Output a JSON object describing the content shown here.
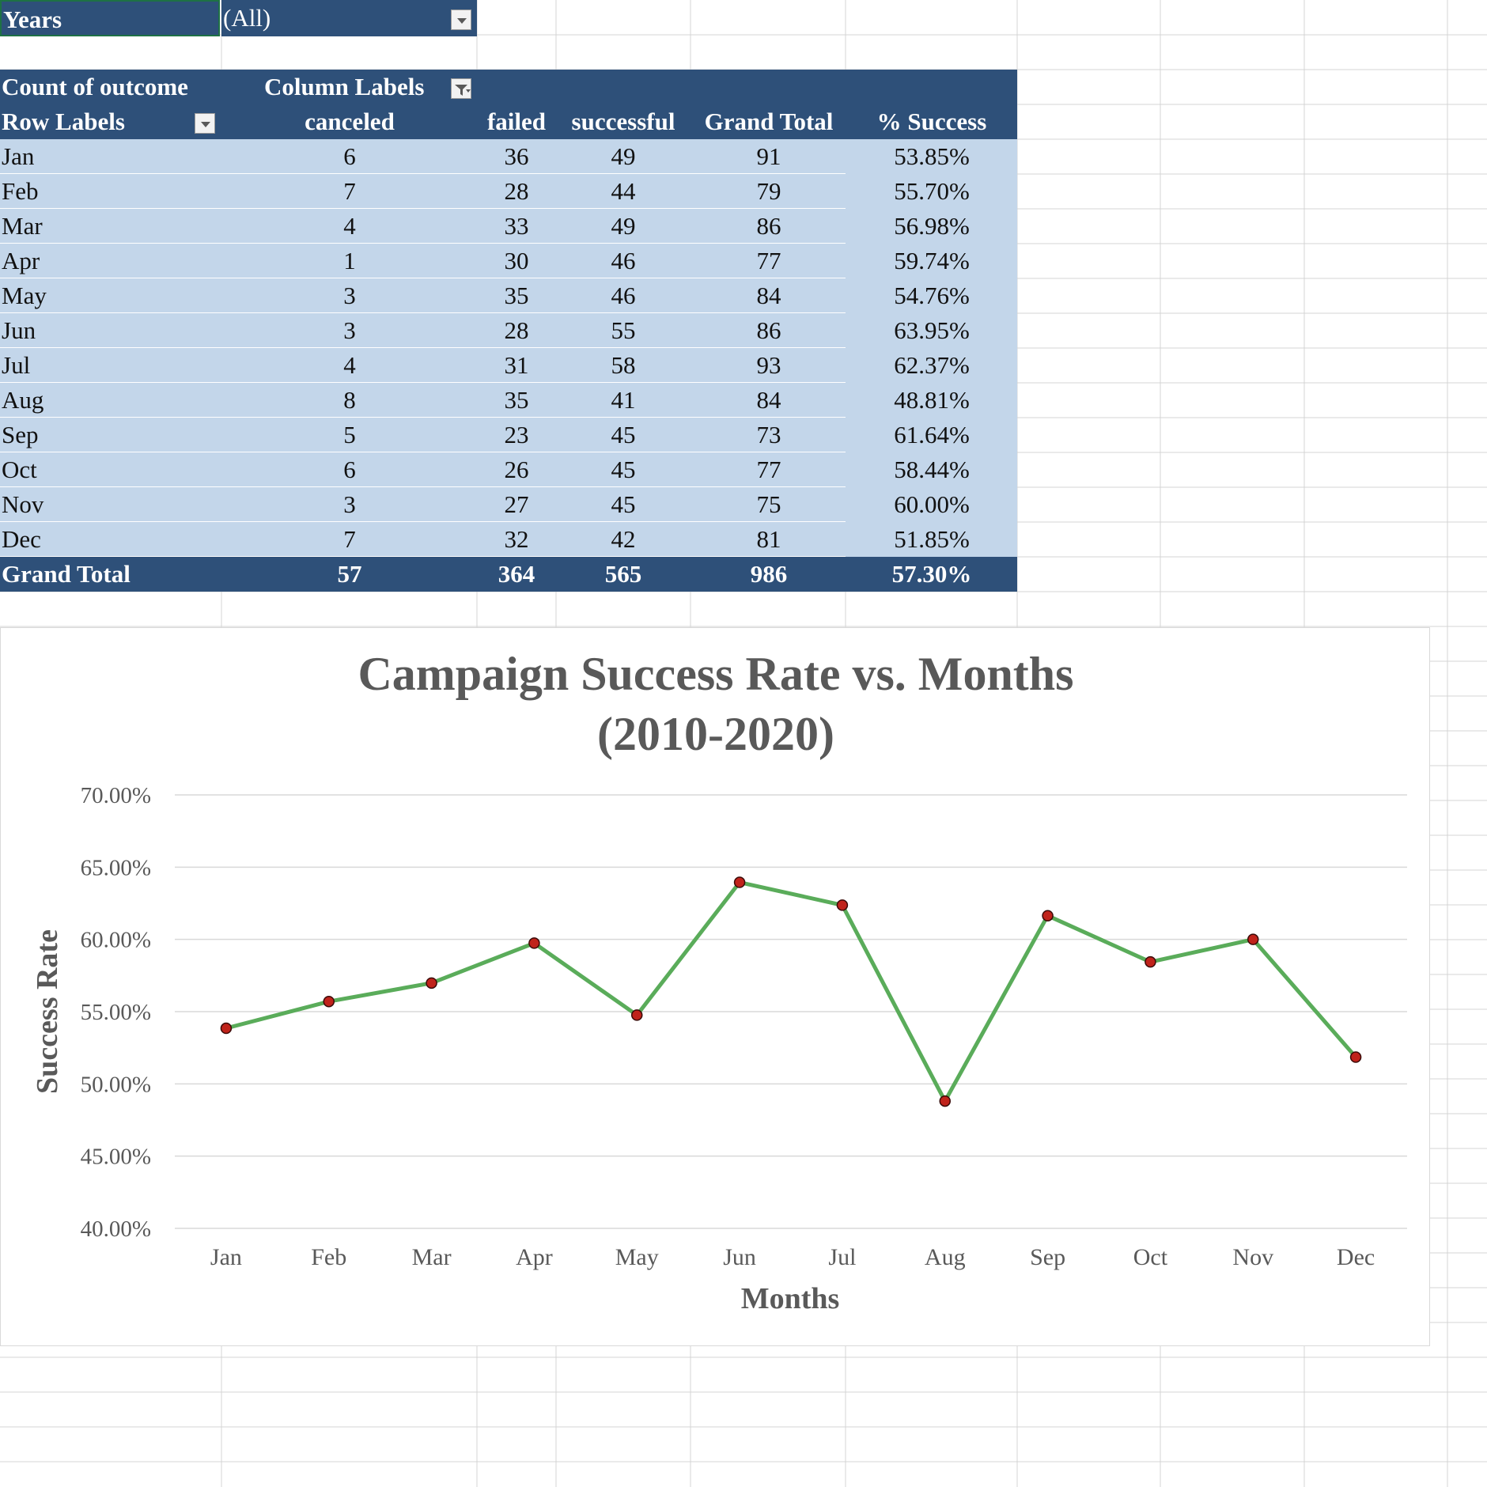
{
  "filter": {
    "field_label": "Years",
    "value": "(All)"
  },
  "pivot": {
    "measure_label": "Count of outcome",
    "column_labels": "Column Labels",
    "row_labels": "Row Labels",
    "columns": [
      "canceled",
      "failed",
      "successful",
      "Grand Total",
      "% Success"
    ],
    "rows": [
      {
        "month": "Jan",
        "canceled": "6",
        "failed": "36",
        "successful": "49",
        "total": "91",
        "pct": "53.85%"
      },
      {
        "month": "Feb",
        "canceled": "7",
        "failed": "28",
        "successful": "44",
        "total": "79",
        "pct": "55.70%"
      },
      {
        "month": "Mar",
        "canceled": "4",
        "failed": "33",
        "successful": "49",
        "total": "86",
        "pct": "56.98%"
      },
      {
        "month": "Apr",
        "canceled": "1",
        "failed": "30",
        "successful": "46",
        "total": "77",
        "pct": "59.74%"
      },
      {
        "month": "May",
        "canceled": "3",
        "failed": "35",
        "successful": "46",
        "total": "84",
        "pct": "54.76%"
      },
      {
        "month": "Jun",
        "canceled": "3",
        "failed": "28",
        "successful": "55",
        "total": "86",
        "pct": "63.95%"
      },
      {
        "month": "Jul",
        "canceled": "4",
        "failed": "31",
        "successful": "58",
        "total": "93",
        "pct": "62.37%"
      },
      {
        "month": "Aug",
        "canceled": "8",
        "failed": "35",
        "successful": "41",
        "total": "84",
        "pct": "48.81%"
      },
      {
        "month": "Sep",
        "canceled": "5",
        "failed": "23",
        "successful": "45",
        "total": "73",
        "pct": "61.64%"
      },
      {
        "month": "Oct",
        "canceled": "6",
        "failed": "26",
        "successful": "45",
        "total": "77",
        "pct": "58.44%"
      },
      {
        "month": "Nov",
        "canceled": "3",
        "failed": "27",
        "successful": "45",
        "total": "75",
        "pct": "60.00%"
      },
      {
        "month": "Dec",
        "canceled": "7",
        "failed": "32",
        "successful": "42",
        "total": "81",
        "pct": "51.85%"
      }
    ],
    "grand_total": {
      "label": "Grand Total",
      "canceled": "57",
      "failed": "364",
      "successful": "565",
      "total": "986",
      "pct": "57.30%"
    }
  },
  "chart_data": {
    "type": "line",
    "title_line1": "Campaign Success Rate vs. Months",
    "title_line2": "(2010-2020)",
    "xlabel": "Months",
    "ylabel": "Success Rate",
    "categories": [
      "Jan",
      "Feb",
      "Mar",
      "Apr",
      "May",
      "Jun",
      "Jul",
      "Aug",
      "Sep",
      "Oct",
      "Nov",
      "Dec"
    ],
    "values": [
      53.85,
      55.7,
      56.98,
      59.74,
      54.76,
      63.95,
      62.37,
      48.81,
      61.64,
      58.44,
      60.0,
      51.85
    ],
    "ylim": [
      40,
      70
    ],
    "yticks": [
      40,
      45,
      50,
      55,
      60,
      65,
      70
    ],
    "ytick_labels": [
      "40.00%",
      "45.00%",
      "50.00%",
      "55.00%",
      "60.00%",
      "65.00%",
      "70.00%"
    ],
    "grid": true,
    "line_color": "#5aac5a",
    "marker_color": "#c0231b"
  },
  "colors": {
    "header": "#2e5079",
    "band": "#c3d6ea",
    "gridline": "#d4d4d4",
    "axis_text": "#595959"
  }
}
